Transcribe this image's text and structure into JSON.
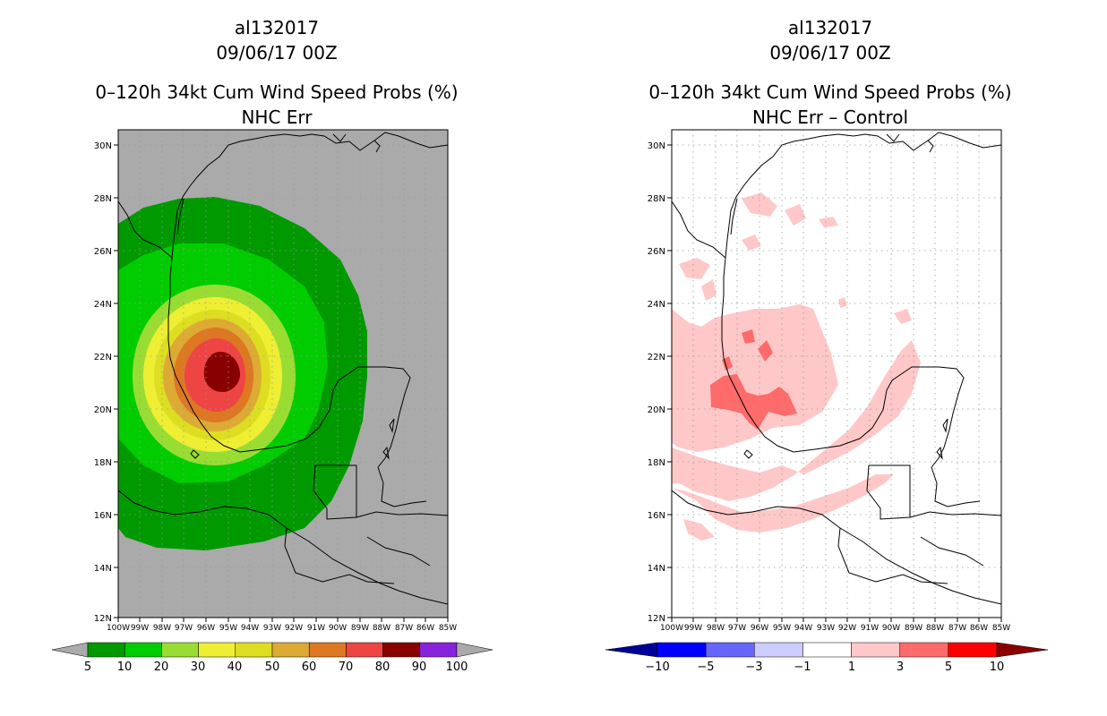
{
  "panels": [
    {
      "id": "left",
      "storm_id": "al132017",
      "datetime": "09/06/17 00Z",
      "title": "0–120h 34kt Cum Wind Speed Probs (%)",
      "subtitle": "NHC Err"
    },
    {
      "id": "right",
      "storm_id": "al132017",
      "datetime": "09/06/17 00Z",
      "title": "0–120h 34kt Cum Wind Speed Probs (%)",
      "subtitle": "NHC Err – Control"
    }
  ],
  "axes": {
    "lat_labels": [
      "30N",
      "28N",
      "26N",
      "24N",
      "22N",
      "20N",
      "18N",
      "16N",
      "14N",
      "12N"
    ],
    "lon_labels": [
      "100W",
      "99W",
      "98W",
      "97W",
      "96W",
      "95W",
      "94W",
      "93W",
      "92W",
      "91W",
      "90W",
      "89W",
      "88W",
      "87W",
      "86W",
      "85W"
    ]
  },
  "legend_left": {
    "labels": [
      "5",
      "10",
      "20",
      "30",
      "40",
      "50",
      "60",
      "70",
      "80",
      "90",
      "100"
    ],
    "colors": [
      "#009900",
      "#00cc00",
      "#99dd33",
      "#eeee33",
      "#dddd22",
      "#ddaa33",
      "#dd7722",
      "#ee4444",
      "#880000",
      "#8822dd"
    ],
    "end_color": "#aaaaaa"
  },
  "legend_right": {
    "labels": [
      "−10",
      "−5",
      "−3",
      "−1",
      "1",
      "3",
      "5",
      "10"
    ],
    "colors": [
      "#0000ff",
      "#6666ff",
      "#ccccff",
      "#ffffff",
      "#ffc8c8",
      "#ff6a6a",
      "#ff0000"
    ],
    "low_color": "#000099",
    "high_color": "#880000"
  },
  "colors": {
    "land_bg_left": "#aaaaaa",
    "bg_right": "#ffffff",
    "outline": "#000000",
    "grid": "#aaaaaa"
  }
}
